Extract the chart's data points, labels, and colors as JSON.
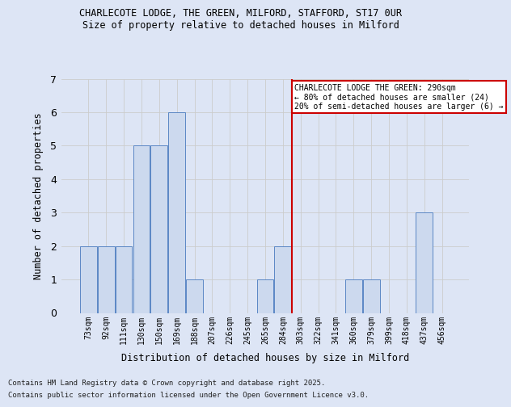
{
  "title1": "CHARLECOTE LODGE, THE GREEN, MILFORD, STAFFORD, ST17 0UR",
  "title2": "Size of property relative to detached houses in Milford",
  "xlabel": "Distribution of detached houses by size in Milford",
  "ylabel": "Number of detached properties",
  "categories": [
    "73sqm",
    "92sqm",
    "111sqm",
    "130sqm",
    "150sqm",
    "169sqm",
    "188sqm",
    "207sqm",
    "226sqm",
    "245sqm",
    "265sqm",
    "284sqm",
    "303sqm",
    "322sqm",
    "341sqm",
    "360sqm",
    "379sqm",
    "399sqm",
    "418sqm",
    "437sqm",
    "456sqm"
  ],
  "values": [
    2,
    2,
    2,
    5,
    5,
    6,
    1,
    0,
    0,
    0,
    1,
    2,
    0,
    0,
    0,
    1,
    1,
    0,
    0,
    3,
    0
  ],
  "bar_color": "#ccd9ee",
  "bar_edge_color": "#5b87c5",
  "grid_color": "#cccccc",
  "background_color": "#dde5f5",
  "red_line_x": 11.5,
  "annotation_text": "CHARLECOTE LODGE THE GREEN: 290sqm\n← 80% of detached houses are smaller (24)\n20% of semi-detached houses are larger (6) →",
  "annotation_box_color": "#ffffff",
  "annotation_box_edge": "#cc0000",
  "red_line_color": "#cc0000",
  "ylim": [
    0,
    7
  ],
  "yticks": [
    0,
    1,
    2,
    3,
    4,
    5,
    6,
    7
  ],
  "footer1": "Contains HM Land Registry data © Crown copyright and database right 2025.",
  "footer2": "Contains public sector information licensed under the Open Government Licence v3.0."
}
